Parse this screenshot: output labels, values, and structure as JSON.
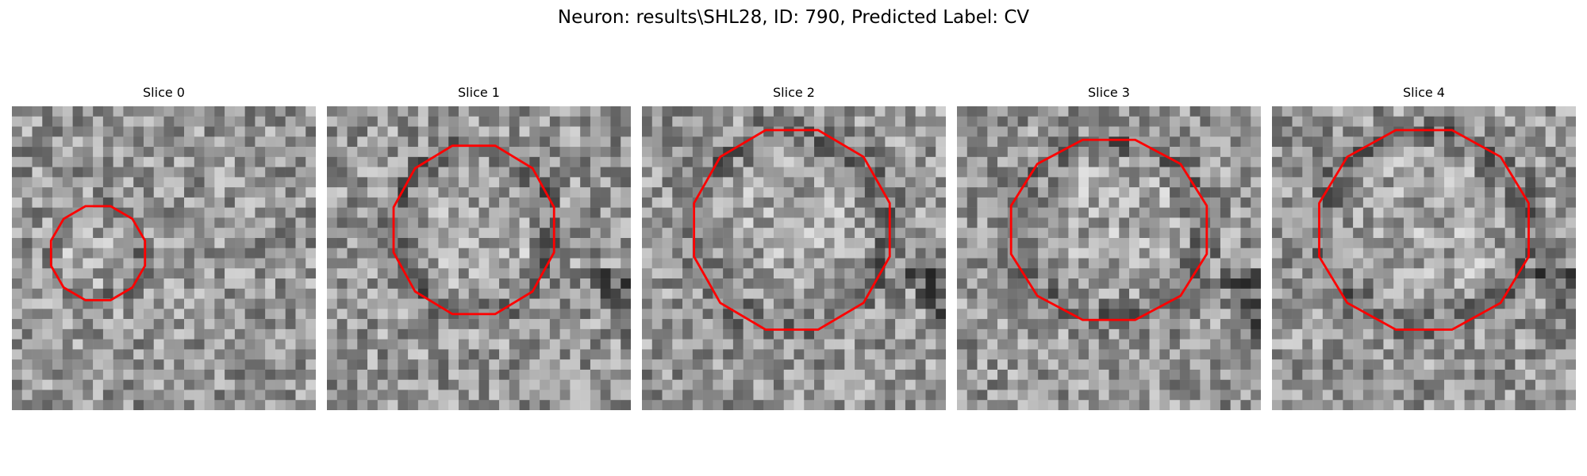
{
  "figure": {
    "title": "Neuron: results\\SHL28, ID: 790, Predicted Label: CV"
  },
  "panels": [
    {
      "title": "Slice 0",
      "contour_color": "#ff0000"
    },
    {
      "title": "Slice 1",
      "contour_color": "#ff0000"
    },
    {
      "title": "Slice 2",
      "contour_color": "#ff0000"
    },
    {
      "title": "Slice 3",
      "contour_color": "#ff0000"
    },
    {
      "title": "Slice 4",
      "contour_color": "#ff0000"
    }
  ]
}
